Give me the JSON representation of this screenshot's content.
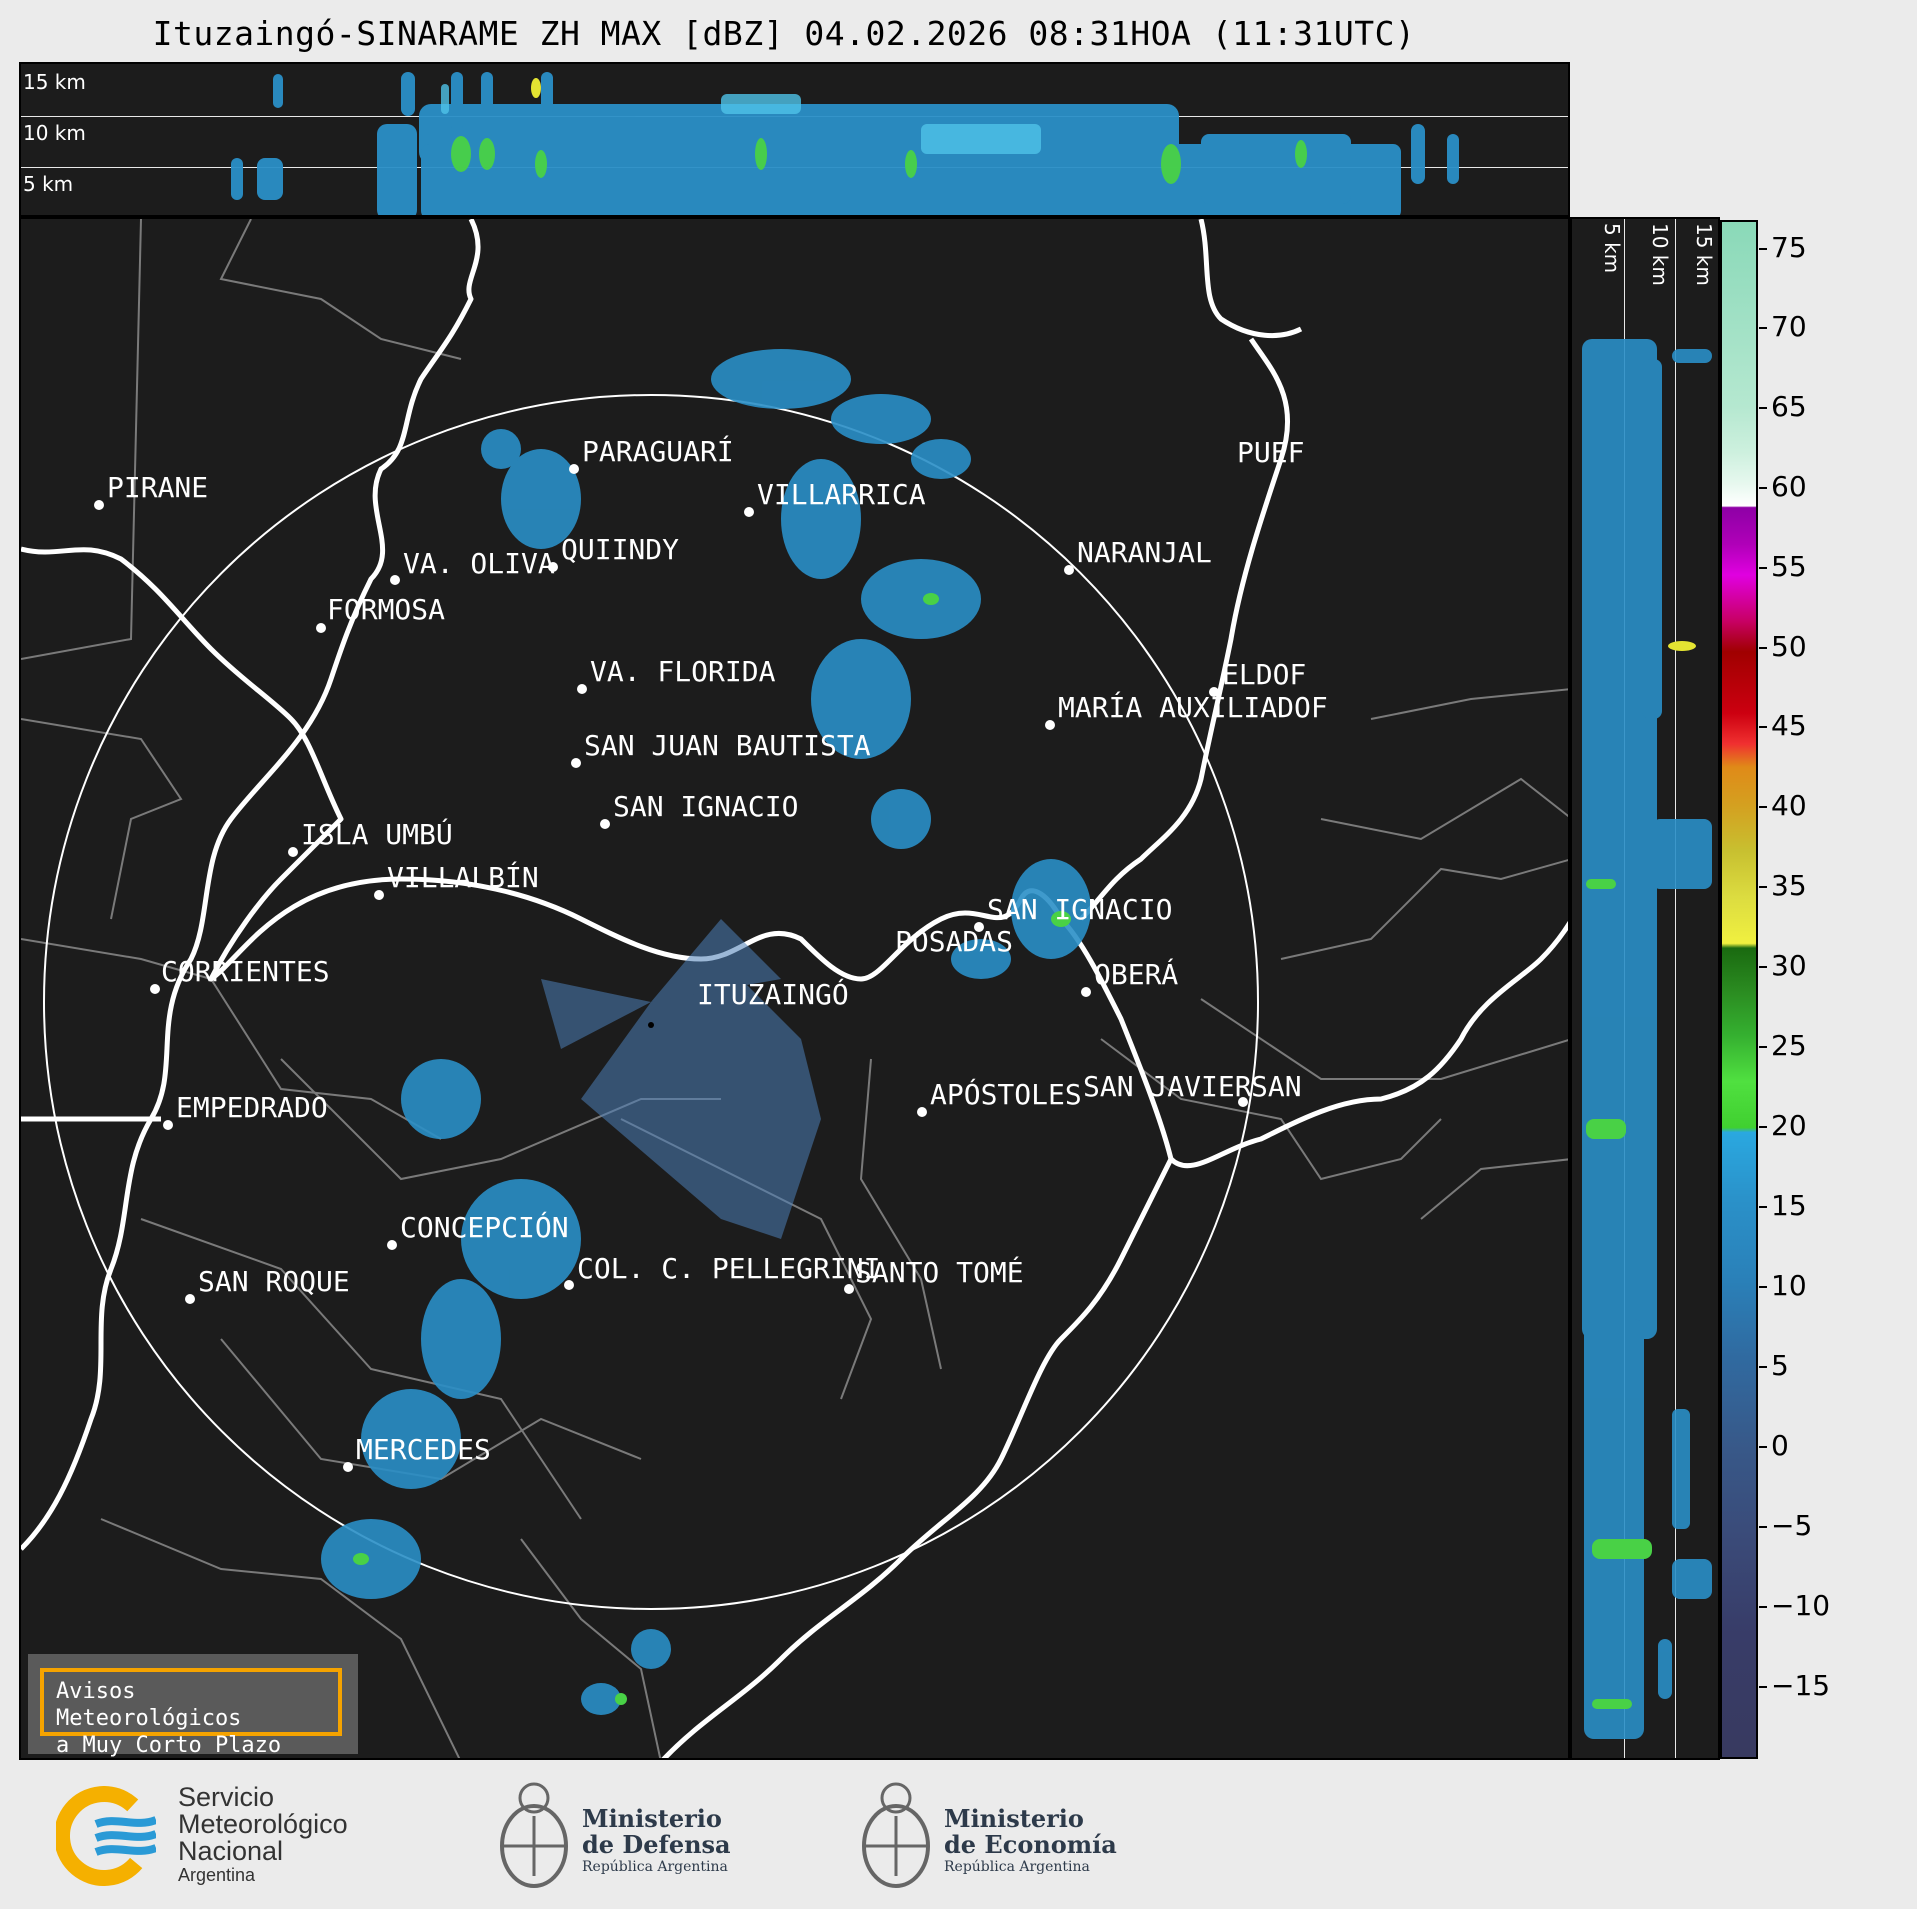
{
  "title": "Ituzaingó-SINARAME ZH MAX [dBZ] 04.02.2026 08:31HOA (11:31UTC)",
  "top_panel": {
    "altitude_labels": [
      "15 km",
      "10 km",
      "5 km"
    ]
  },
  "right_panel": {
    "altitude_labels": [
      "5 km",
      "10 km",
      "15 km"
    ]
  },
  "colorbar": {
    "unit": "dBZ",
    "ticks": [
      "75",
      "70",
      "65",
      "60",
      "55",
      "50",
      "45",
      "40",
      "35",
      "30",
      "25",
      "20",
      "15",
      "10",
      "5",
      "0",
      "−5",
      "−10",
      "−15"
    ],
    "range": [
      -20,
      77
    ]
  },
  "map": {
    "radar_site": "ITUZAINGÓ",
    "range_ring": "radar coverage circle",
    "cities": [
      "PIRANE",
      "PARAGUARÍ",
      "VILLARRICA",
      "QUIINDY",
      "VA. OLIVA",
      "FORMOSA",
      "NARANJAL",
      "PUEF",
      "VA. FLORIDA",
      "ELDOF",
      "MARÍA AUXILIADOF",
      "SAN JUAN BAUTISTA",
      "SAN IGNACIO",
      "ISLA UMBÚ",
      "VILLALBÍN",
      "SAN IGNACIO",
      "POSADAS",
      "OBERÁ",
      "CORRIENTES",
      "ITUZAINGÓ",
      "EMPEDRADO",
      "APÓSTOLES",
      "SAN JAVIER",
      "SAN",
      "CONCEPCIÓN",
      "COL. C. PELLEGRINI",
      "SANTO TOMÉ",
      "SAN ROQUE",
      "MERCEDES"
    ]
  },
  "warning": {
    "line1": "Avisos Meteorológicos",
    "line2": "a Muy Corto Plazo"
  },
  "footer": {
    "smn_line1": "Servicio",
    "smn_line2": "Meteorológico",
    "smn_line3": "Nacional",
    "smn_line4": "Argentina",
    "defensa_line1": "Ministerio",
    "defensa_line2": "de Defensa",
    "defensa_line3": "República Argentina",
    "economia_line1": "Ministerio",
    "economia_line2": "de Economía",
    "economia_line3": "República Argentina"
  }
}
